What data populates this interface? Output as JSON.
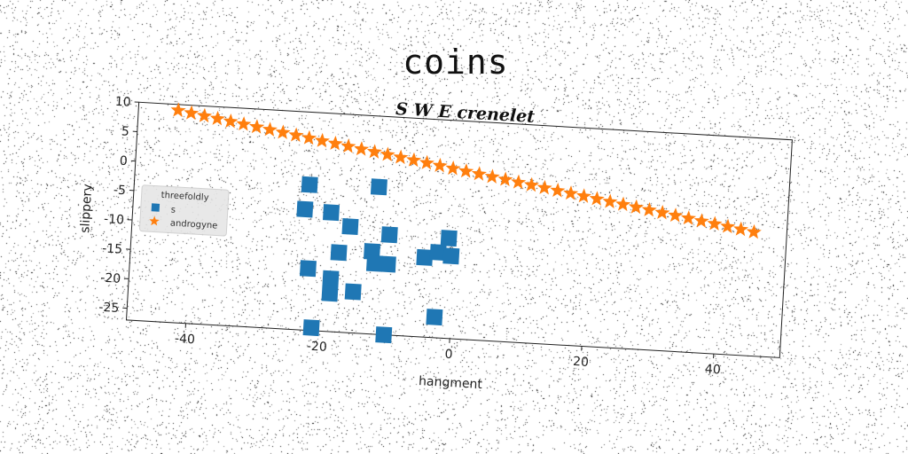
{
  "figure": {
    "title": "coins"
  },
  "chart_data": {
    "type": "scatter",
    "title": "S W E crenelet",
    "xlabel": "hangment",
    "ylabel": "slippery",
    "xlim": [
      -49,
      50
    ],
    "ylim": [
      -27,
      10
    ],
    "xticks": [
      -40,
      -20,
      0,
      20,
      40
    ],
    "yticks": [
      10,
      5,
      0,
      -5,
      -10,
      -15,
      -20,
      -25
    ],
    "grid": false,
    "legend": {
      "title": "threefoldly",
      "placement": "center-left"
    },
    "colors": {
      "s": "#1f77b4",
      "androgyne": "#ff7f0e"
    },
    "series": [
      {
        "name": "s",
        "marker": "square",
        "points": [
          [
            -22.5,
            -2.3
          ],
          [
            -23,
            -6.5
          ],
          [
            -19,
            -6.8
          ],
          [
            -16,
            -9
          ],
          [
            -12,
            -2
          ],
          [
            -10,
            -10
          ],
          [
            -17.5,
            -13.5
          ],
          [
            -12.5,
            -13
          ],
          [
            -12,
            -15
          ],
          [
            -10,
            -15
          ],
          [
            -22,
            -16.5
          ],
          [
            -18.5,
            -18
          ],
          [
            -18.5,
            -20.5
          ],
          [
            -15,
            -20
          ],
          [
            -4.5,
            -13.5
          ],
          [
            -2.5,
            -12.5
          ],
          [
            -1,
            -10
          ],
          [
            -0.5,
            -13
          ],
          [
            -2.5,
            -23.5
          ],
          [
            -21,
            -26.5
          ],
          [
            -10,
            -27
          ]
        ]
      },
      {
        "name": "androgyne",
        "marker": "star",
        "x_start": -43,
        "x_step": 2,
        "count": 45,
        "y_start": 9,
        "y_end": -6
      }
    ]
  }
}
